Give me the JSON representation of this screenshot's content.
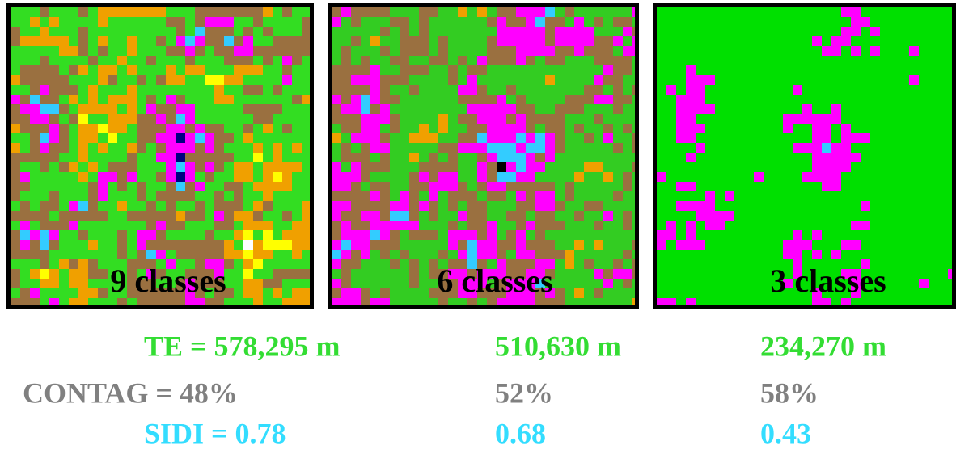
{
  "panels": [
    {
      "label": "9 classes"
    },
    {
      "label": "6 classes"
    },
    {
      "label": "3 classes"
    }
  ],
  "metrics": [
    [
      "TE =  578,295 m",
      "510,630 m",
      "234,270 m"
    ],
    [
      "CONTAG = 48%",
      "52%",
      "58%"
    ],
    [
      "SIDI = 0.78",
      "0.68",
      "0.43"
    ]
  ]
}
